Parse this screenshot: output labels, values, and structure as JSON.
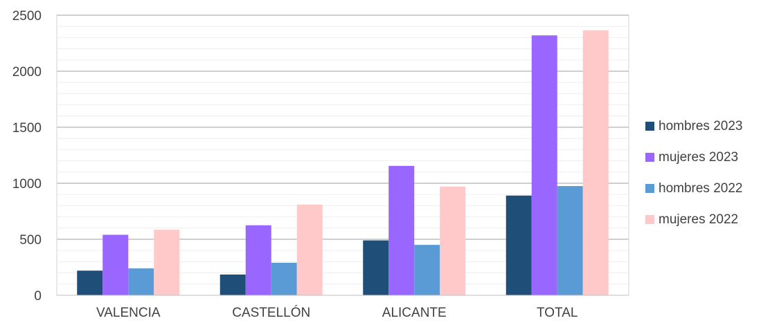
{
  "chart_data": {
    "type": "bar",
    "categories": [
      "VALENCIA",
      "CASTELLÓN",
      "ALICANTE",
      "TOTAL"
    ],
    "series": [
      {
        "name": "hombres 2023",
        "color": "#1f4e79",
        "values": [
          220,
          185,
          490,
          890
        ]
      },
      {
        "name": "mujeres 2023",
        "color": "#9966ff",
        "values": [
          540,
          625,
          1155,
          2320
        ]
      },
      {
        "name": "hombres 2022",
        "color": "#5b9bd5",
        "values": [
          240,
          290,
          450,
          975
        ]
      },
      {
        "name": "mujeres 2022",
        "color": "#ffc9c9",
        "values": [
          585,
          810,
          970,
          2365
        ]
      }
    ],
    "title": "",
    "xlabel": "",
    "ylabel": "",
    "ylim": [
      0,
      2500
    ],
    "yticks": [
      0,
      500,
      1000,
      1500,
      2000,
      2500
    ],
    "grid": true,
    "legend_position": "right"
  }
}
